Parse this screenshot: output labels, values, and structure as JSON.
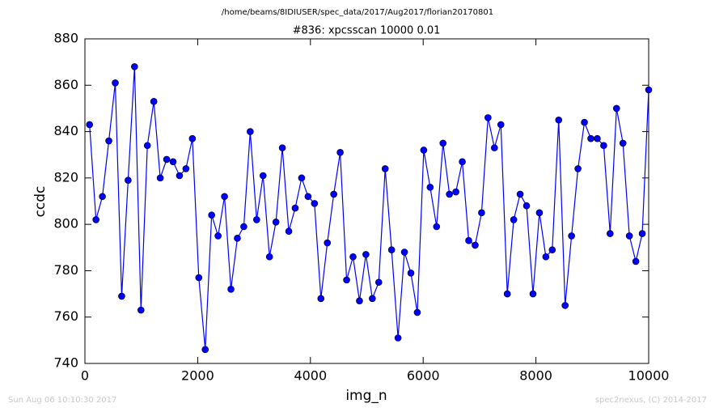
{
  "chart_data": {
    "type": "line",
    "suptitle": "/home/beams/8IDIUSER/spec_data/2017/Aug2017/florian20170801",
    "title": "#836: xpcsscan 10000 0.01",
    "xlabel": "img_n",
    "ylabel": "ccdc",
    "footer_left": "Sun Aug 06 10:10:30 2017",
    "footer_right": "spec2nexus, (C) 2014-2017",
    "color": "#0000ff",
    "marker": true,
    "xlim": [
      0,
      10000
    ],
    "xticks": [
      0,
      2000,
      4000,
      6000,
      8000,
      10000
    ],
    "ylim": [
      740,
      880
    ],
    "yticks": [
      740,
      760,
      780,
      800,
      820,
      840,
      860,
      880
    ],
    "grid": false,
    "x": [
      82,
      196,
      310,
      424,
      538,
      652,
      766,
      880,
      994,
      1108,
      1222,
      1336,
      1450,
      1564,
      1678,
      1792,
      1906,
      2020,
      2134,
      2248,
      2362,
      2476,
      2590,
      2704,
      2818,
      2932,
      3046,
      3160,
      3274,
      3388,
      3502,
      3616,
      3730,
      3844,
      3958,
      4072,
      4186,
      4300,
      4414,
      4528,
      4642,
      4756,
      4870,
      4984,
      5098,
      5212,
      5326,
      5440,
      5554,
      5668,
      5782,
      5896,
      6010,
      6124,
      6238,
      6352,
      6466,
      6580,
      6694,
      6808,
      6922,
      7036,
      7150,
      7264,
      7378,
      7492,
      7606,
      7720,
      7834,
      7948,
      8062,
      8176,
      8290,
      8404,
      8518,
      8632,
      8746,
      8860,
      8974,
      9088,
      9202,
      9316,
      9430,
      9544,
      9658,
      9772,
      9886,
      10000
    ],
    "values": [
      843,
      802,
      812,
      836,
      861,
      769,
      819,
      868,
      763,
      834,
      853,
      820,
      828,
      827,
      821,
      824,
      837,
      777,
      746,
      804,
      795,
      812,
      772,
      794,
      799,
      840,
      802,
      821,
      786,
      801,
      833,
      797,
      807,
      820,
      812,
      809,
      768,
      792,
      813,
      831,
      776,
      786,
      767,
      787,
      768,
      775,
      824,
      789,
      751,
      788,
      779,
      762,
      832,
      816,
      799,
      835,
      813,
      814,
      827,
      793,
      791,
      805,
      846,
      833,
      843,
      770,
      802,
      813,
      808,
      770,
      805,
      786,
      789,
      845,
      765,
      795,
      824,
      844,
      837,
      837,
      834,
      796,
      850,
      835,
      795,
      784,
      796,
      858
    ]
  }
}
